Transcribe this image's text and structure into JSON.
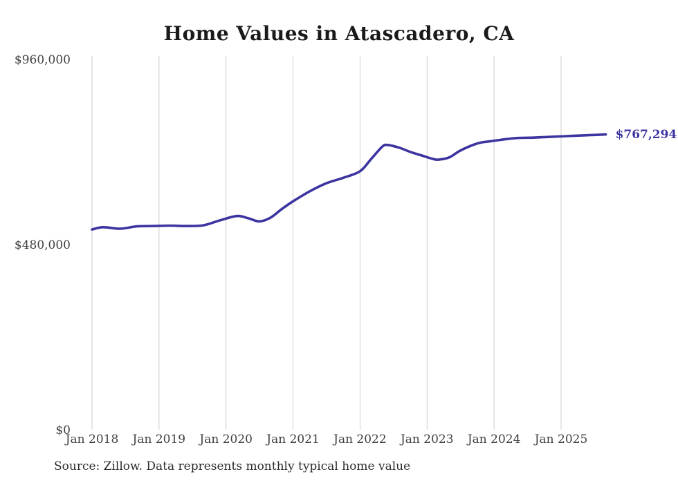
{
  "chart_data": {
    "type": "line",
    "title": "Home Values in Atascadero, CA",
    "source_note": "Source: Zillow. Data represents monthly typical home value",
    "series_name": "Monthly typical home value",
    "end_label": "$767,294",
    "end_value": 767294,
    "ylim": [
      0,
      960000
    ],
    "grid": "vertical-only",
    "legend": "none",
    "line_color": "#3c34a0",
    "end_label_color": "#3c34a0",
    "axis_text_color": "#404040",
    "gridline_color": "#cccccc",
    "y_ticks": [
      {
        "label": "$960,000",
        "value": 960000
      },
      {
        "label": "$480,000",
        "value": 480000
      },
      {
        "label": "$0",
        "value": 0
      }
    ],
    "x_ticks": [
      {
        "label": "Jan 2018",
        "month": "2018-01"
      },
      {
        "label": "Jan 2019",
        "month": "2019-01"
      },
      {
        "label": "Jan 2020",
        "month": "2020-01"
      },
      {
        "label": "Jan 2021",
        "month": "2021-01"
      },
      {
        "label": "Jan 2022",
        "month": "2022-01"
      },
      {
        "label": "Jan 2023",
        "month": "2023-01"
      },
      {
        "label": "Jan 2024",
        "month": "2024-01"
      },
      {
        "label": "Jan 2025",
        "month": "2025-01"
      }
    ],
    "months": [
      "2018-01",
      "2018-03",
      "2018-06",
      "2018-09",
      "2018-12",
      "2019-03",
      "2019-06",
      "2019-09",
      "2019-12",
      "2020-03",
      "2020-05",
      "2020-07",
      "2020-09",
      "2020-11",
      "2021-01",
      "2021-04",
      "2021-07",
      "2021-10",
      "2022-01",
      "2022-03",
      "2022-05",
      "2022-06",
      "2022-08",
      "2022-10",
      "2022-12",
      "2023-02",
      "2023-03",
      "2023-05",
      "2023-07",
      "2023-10",
      "2023-12",
      "2024-02",
      "2024-05",
      "2024-08",
      "2024-11",
      "2025-02",
      "2025-05",
      "2025-07",
      "2025-09"
    ],
    "values": [
      521000,
      527000,
      523000,
      529000,
      530000,
      531000,
      530000,
      532000,
      545000,
      556000,
      550000,
      542000,
      552000,
      574000,
      594000,
      620000,
      641000,
      655000,
      672000,
      704000,
      736000,
      740000,
      733000,
      722000,
      713000,
      704000,
      702000,
      708000,
      726000,
      744000,
      749000,
      753000,
      758000,
      759000,
      761000,
      763000,
      765000,
      766000,
      767294
    ]
  }
}
